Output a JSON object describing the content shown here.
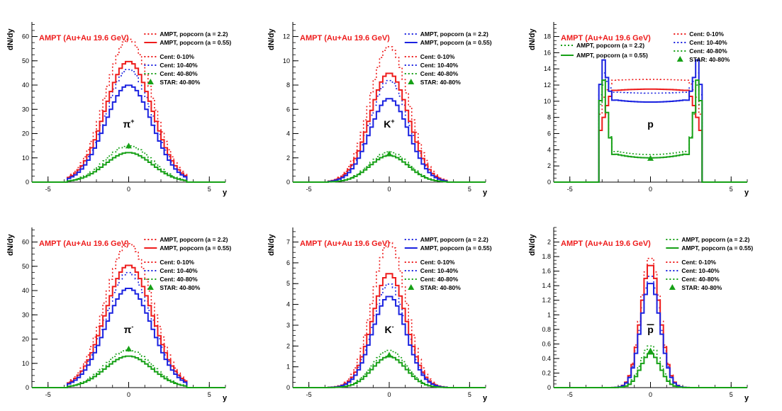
{
  "colors": {
    "red": "#ee1c1c",
    "blue": "#1a22e0",
    "green": "#16a016",
    "axis": "#000000"
  },
  "chart_data": [
    {
      "type": "histogram",
      "particle": "π",
      "particle_sup": "+",
      "particle_bar": false,
      "title": "AMPT (Au+Au 19.6 GeV)",
      "xlabel": "y",
      "ylabel": "dN/dy",
      "xlim": [
        -6,
        6
      ],
      "ylim": [
        0,
        66
      ],
      "xticks": [
        -5,
        0,
        5
      ],
      "yticks": [
        0,
        10,
        20,
        30,
        40,
        50,
        60
      ],
      "shape": "gauss",
      "sigma": 1.45,
      "width_mult": 1.0,
      "legend_style": "popcorn",
      "legend_popcorn": [
        "AMPT, popcorn (a = 2.2)",
        "AMPT, popcorn (a = 0.55)"
      ],
      "legend_cent": [
        "Cent: 0-10%",
        "Cent: 10-40%",
        "Cent: 40-80%",
        "STAR: 40-80%"
      ],
      "series": [
        {
          "name": "0-10% a=2.2",
          "color": "red",
          "style": "dotted",
          "peak": 59.0
        },
        {
          "name": "10-40% a=2.2",
          "color": "blue",
          "style": "dotted",
          "peak": 46.5
        },
        {
          "name": "40-80% a=2.2",
          "color": "green",
          "style": "dotted",
          "peak": 15.0
        },
        {
          "name": "0-10% a=0.55",
          "color": "red",
          "style": "solid",
          "peak": 49.8
        },
        {
          "name": "10-40% a=0.55",
          "color": "blue",
          "style": "solid",
          "peak": 40.0
        },
        {
          "name": "40-80% a=0.55",
          "color": "green",
          "style": "solid",
          "peak": 12.2
        }
      ],
      "star_point": {
        "x": 0,
        "y": 14.8,
        "err": 1.0
      }
    },
    {
      "type": "histogram",
      "particle": "K",
      "particle_sup": "+",
      "particle_bar": false,
      "title": "AMPT (Au+Au 19.6 GeV)",
      "xlabel": "y",
      "ylabel": "dN/dy",
      "xlim": [
        -6,
        6
      ],
      "ylim": [
        0,
        13.2
      ],
      "xticks": [
        -5,
        0,
        5
      ],
      "yticks": [
        0,
        2,
        4,
        6,
        8,
        10,
        12
      ],
      "shape": "gauss",
      "sigma": 1.2,
      "width_mult": 1.0,
      "legend_style": "popcorn",
      "legend_popcorn": [
        "AMPT, popcorn (a = 2.2)",
        "AMPT, popcorn (a = 0.55)"
      ],
      "legend_cent": [
        "Cent: 0-10%",
        "Cent: 10-40%",
        "Cent: 40-80%",
        "STAR: 40-80%"
      ],
      "series": [
        {
          "name": "0-10% a=2.2",
          "color": "red",
          "style": "dotted",
          "peak": 11.2
        },
        {
          "name": "10-40% a=2.2",
          "color": "blue",
          "style": "dotted",
          "peak": 8.4
        },
        {
          "name": "40-80% a=2.2",
          "color": "green",
          "style": "dotted",
          "peak": 2.5
        },
        {
          "name": "0-10% a=0.55",
          "color": "red",
          "style": "solid",
          "peak": 9.0
        },
        {
          "name": "10-40% a=0.55",
          "color": "blue",
          "style": "solid",
          "peak": 6.9
        },
        {
          "name": "40-80% a=0.55",
          "color": "green",
          "style": "solid",
          "peak": 2.2
        }
      ],
      "star_point": {
        "x": 0,
        "y": 2.3,
        "err": 0.15
      }
    },
    {
      "type": "histogram",
      "particle": "p",
      "particle_sup": "",
      "particle_bar": false,
      "title": "AMPT (Au+Au 19.6 GeV)",
      "xlabel": "y",
      "ylabel": "dN/dy",
      "xlim": [
        -6,
        6
      ],
      "ylim": [
        0,
        19.8
      ],
      "xticks": [
        -5,
        0,
        5
      ],
      "yticks": [
        0,
        2,
        4,
        6,
        8,
        10,
        12,
        14,
        16,
        18
      ],
      "shape": "proton",
      "sigma": 1.0,
      "width_mult": 1.0,
      "legend_style": "cent_top",
      "legend_popcorn": [
        "AMPT, popcorn (a = 2.2)",
        "AMPT, popcorn (a = 0.55)"
      ],
      "legend_cent": [
        "Cent: 0-10%",
        "Cent: 10-40%",
        "Cent: 40-80%",
        "STAR: 40-80%"
      ],
      "series": [
        {
          "name": "0-10% a=2.2",
          "color": "red",
          "style": "dotted",
          "center": 12.7,
          "edge": 10.5
        },
        {
          "name": "10-40% a=2.2",
          "color": "blue",
          "style": "dotted",
          "center": 11.0,
          "edge": 13.5
        },
        {
          "name": "40-80% a=2.2",
          "color": "green",
          "style": "dotted",
          "center": 3.4,
          "edge": 12.0
        },
        {
          "name": "0-10% a=0.55",
          "color": "red",
          "style": "solid",
          "center": 11.5,
          "edge": 8.0
        },
        {
          "name": "10-40% a=0.55",
          "color": "blue",
          "style": "solid",
          "center": 9.9,
          "edge": 15.1
        },
        {
          "name": "40-80% a=0.55",
          "color": "green",
          "style": "solid",
          "center": 3.0,
          "edge": 12.6
        }
      ],
      "star_point": {
        "x": 0,
        "y": 2.9,
        "err": 0.2
      }
    },
    {
      "type": "histogram",
      "particle": "π",
      "particle_sup": "-",
      "particle_bar": false,
      "title": "AMPT (Au+Au 19.6 GeV)",
      "xlabel": "y",
      "ylabel": "dN/dy",
      "xlim": [
        -6,
        6
      ],
      "ylim": [
        0,
        66
      ],
      "xticks": [
        -5,
        0,
        5
      ],
      "yticks": [
        0,
        10,
        20,
        30,
        40,
        50,
        60
      ],
      "shape": "gauss",
      "sigma": 1.45,
      "width_mult": 1.0,
      "legend_style": "popcorn",
      "legend_popcorn": [
        "AMPT, popcorn (a = 2.2)",
        "AMPT, popcorn (a = 0.55)"
      ],
      "legend_cent": [
        "Cent: 0-10%",
        "Cent: 10-40%",
        "Cent: 40-80%",
        "STAR: 40-80%"
      ],
      "series": [
        {
          "name": "0-10% a=2.2",
          "color": "red",
          "style": "dotted",
          "peak": 59.5
        },
        {
          "name": "10-40% a=2.2",
          "color": "blue",
          "style": "dotted",
          "peak": 47.5
        },
        {
          "name": "40-80% a=2.2",
          "color": "green",
          "style": "dotted",
          "peak": 15.5
        },
        {
          "name": "0-10% a=0.55",
          "color": "red",
          "style": "solid",
          "peak": 50.5
        },
        {
          "name": "10-40% a=0.55",
          "color": "blue",
          "style": "solid",
          "peak": 41.0
        },
        {
          "name": "40-80% a=0.55",
          "color": "green",
          "style": "solid",
          "peak": 13.0
        }
      ],
      "star_point": {
        "x": 0,
        "y": 15.8,
        "err": 1.0
      }
    },
    {
      "type": "histogram",
      "particle": "K",
      "particle_sup": "-",
      "particle_bar": false,
      "title": "AMPT (Au+Au 19.6 GeV)",
      "xlabel": "y",
      "ylabel": "dN/dy",
      "xlim": [
        -6,
        6
      ],
      "ylim": [
        0,
        7.7
      ],
      "xticks": [
        -5,
        0,
        5
      ],
      "yticks": [
        0,
        1,
        2,
        3,
        4,
        5,
        6,
        7
      ],
      "shape": "gauss",
      "sigma": 1.05,
      "width_mult": 1.0,
      "legend_style": "popcorn",
      "legend_popcorn": [
        "AMPT, popcorn (a = 2.2)",
        "AMPT, popcorn (a = 0.55)"
      ],
      "legend_cent": [
        "Cent: 0-10%",
        "Cent: 10-40%",
        "Cent: 40-80%",
        "STAR: 40-80%"
      ],
      "series": [
        {
          "name": "0-10% a=2.2",
          "color": "red",
          "style": "dotted",
          "peak": 7.0
        },
        {
          "name": "10-40% a=2.2",
          "color": "blue",
          "style": "dotted",
          "peak": 5.0
        },
        {
          "name": "40-80% a=2.2",
          "color": "green",
          "style": "dotted",
          "peak": 1.8
        },
        {
          "name": "0-10% a=0.55",
          "color": "red",
          "style": "solid",
          "peak": 5.5
        },
        {
          "name": "10-40% a=0.55",
          "color": "blue",
          "style": "solid",
          "peak": 4.4
        },
        {
          "name": "40-80% a=0.55",
          "color": "green",
          "style": "solid",
          "peak": 1.5
        }
      ],
      "star_point": {
        "x": 0,
        "y": 1.55,
        "err": 0.08
      }
    },
    {
      "type": "histogram",
      "particle": "p",
      "particle_sup": "",
      "particle_bar": true,
      "title": "AMPT (Au+Au 19.6 GeV)",
      "xlabel": "y",
      "ylabel": "dN/dy",
      "xlim": [
        -6,
        6
      ],
      "ylim": [
        0,
        2.2
      ],
      "xticks": [
        -5,
        0,
        5
      ],
      "yticks": [
        0,
        0.2,
        0.4,
        0.6,
        0.8,
        1,
        1.2,
        1.4,
        1.6,
        1.8,
        2
      ],
      "shape": "gauss",
      "sigma": 0.6,
      "width_mult": 1.0,
      "legend_style": "popcorn",
      "legend_popcorn": [
        "AMPT, popcorn (a = 2.2)",
        "AMPT, popcorn (a = 0.55)"
      ],
      "legend_cent": [
        "Cent: 0-10%",
        "Cent: 10-40%",
        "Cent: 40-80%",
        "STAR: 40-80%"
      ],
      "series": [
        {
          "name": "0-10% a=2.2",
          "color": "red",
          "style": "dotted",
          "peak": 1.8
        },
        {
          "name": "10-40% a=2.2",
          "color": "blue",
          "style": "dotted",
          "peak": 1.55
        },
        {
          "name": "40-80% a=2.2",
          "color": "green",
          "style": "dotted",
          "peak": 0.58
        },
        {
          "name": "0-10% a=0.55",
          "color": "red",
          "style": "solid",
          "peak": 1.7
        },
        {
          "name": "10-40% a=0.55",
          "color": "blue",
          "style": "solid",
          "peak": 1.45
        },
        {
          "name": "40-80% a=0.55",
          "color": "green",
          "style": "solid",
          "peak": 0.47
        }
      ],
      "star_point": {
        "x": 0,
        "y": 0.5,
        "err": 0.03
      }
    }
  ]
}
